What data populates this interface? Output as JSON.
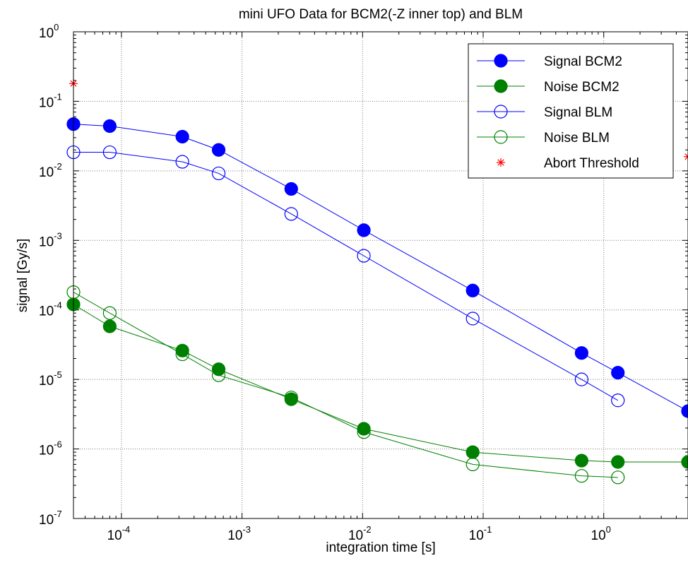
{
  "chart_data": {
    "type": "line",
    "title": "mini UFO Data for BCM2(-Z inner top) and BLM",
    "xlabel": "integration time [s]",
    "ylabel": "signal [Gy/s]",
    "xscale": "log",
    "yscale": "log",
    "xlim": [
      4e-05,
      5
    ],
    "ylim": [
      1e-07,
      1
    ],
    "x_ticks": [
      {
        "base": "10",
        "exp": "-4",
        "value": 0.0001
      },
      {
        "base": "10",
        "exp": "-3",
        "value": 0.001
      },
      {
        "base": "10",
        "exp": "-2",
        "value": 0.01
      },
      {
        "base": "10",
        "exp": "-1",
        "value": 0.1
      },
      {
        "base": "10",
        "exp": "0",
        "value": 1
      }
    ],
    "y_ticks": [
      {
        "base": "10",
        "exp": "0",
        "value": 1
      },
      {
        "base": "10",
        "exp": "-1",
        "value": 0.1
      },
      {
        "base": "10",
        "exp": "-2",
        "value": 0.01
      },
      {
        "base": "10",
        "exp": "-3",
        "value": 0.001
      },
      {
        "base": "10",
        "exp": "-4",
        "value": 0.0001
      },
      {
        "base": "10",
        "exp": "-5",
        "value": 1e-05
      },
      {
        "base": "10",
        "exp": "-6",
        "value": 1e-06
      },
      {
        "base": "10",
        "exp": "-7",
        "value": 1e-07
      }
    ],
    "grid": true,
    "legend_position": "top-right",
    "series": [
      {
        "name": "Signal BCM2",
        "color": "#0000ff",
        "marker": "filled-circle",
        "x": [
          4e-05,
          8e-05,
          0.00032,
          0.00064,
          0.00256,
          0.01024,
          0.08192,
          0.65536,
          1.31,
          5.0
        ],
        "y": [
          0.047,
          0.044,
          0.031,
          0.02,
          0.0055,
          0.0014,
          0.00019,
          2.4e-05,
          1.25e-05,
          3.5e-06
        ]
      },
      {
        "name": "Noise BCM2",
        "color": "#008000",
        "marker": "filled-circle",
        "x": [
          4e-05,
          8e-05,
          0.00032,
          0.00064,
          0.00256,
          0.01024,
          0.08192,
          0.65536,
          1.31,
          5.0
        ],
        "y": [
          0.00012,
          5.8e-05,
          2.6e-05,
          1.4e-05,
          5.2e-06,
          1.95e-06,
          9e-07,
          6.8e-07,
          6.5e-07,
          6.5e-07
        ]
      },
      {
        "name": "Signal BLM",
        "color": "#0000ff",
        "marker": "open-circle",
        "x": [
          4e-05,
          8e-05,
          0.00032,
          0.00064,
          0.00256,
          0.01024,
          0.08192,
          0.65536,
          1.31
        ],
        "y": [
          0.0185,
          0.0185,
          0.0135,
          0.0092,
          0.0024,
          0.0006,
          7.5e-05,
          1e-05,
          5e-06
        ]
      },
      {
        "name": "Noise BLM",
        "color": "#008000",
        "marker": "open-circle",
        "x": [
          4e-05,
          8e-05,
          0.00032,
          0.00064,
          0.00256,
          0.01024,
          0.08192,
          0.65536,
          1.31
        ],
        "y": [
          0.00018,
          9e-05,
          2.3e-05,
          1.15e-05,
          5.5e-06,
          1.75e-06,
          6e-07,
          4.1e-07,
          3.9e-07
        ]
      },
      {
        "name": "Abort Threshold",
        "color": "#ff0000",
        "marker": "star",
        "line": false,
        "x": [
          4e-05,
          5.0
        ],
        "y": [
          0.18,
          0.016
        ]
      }
    ]
  }
}
